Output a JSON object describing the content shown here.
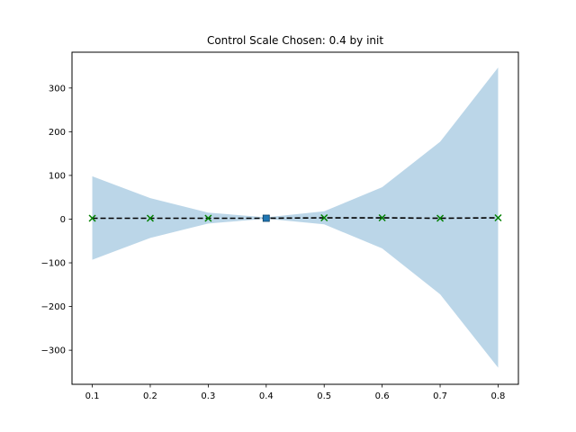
{
  "chart_data": {
    "type": "line",
    "title": "Control Scale Chosen: 0.4 by init",
    "xlabel": "",
    "ylabel": "",
    "xlim": [
      0.065,
      0.835
    ],
    "ylim": [
      -378,
      382
    ],
    "x_ticks": [
      0.1,
      0.2,
      0.3,
      0.4,
      0.5,
      0.6,
      0.7,
      0.8
    ],
    "x_tick_labels": [
      "0.1",
      "0.2",
      "0.3",
      "0.4",
      "0.5",
      "0.6",
      "0.7",
      "0.8"
    ],
    "y_ticks": [
      -300,
      -200,
      -100,
      0,
      100,
      200,
      300
    ],
    "y_tick_labels": [
      "−300",
      "−200",
      "−100",
      "0",
      "100",
      "200",
      "300"
    ],
    "grid": false,
    "band": {
      "x": [
        0.1,
        0.2,
        0.3,
        0.4,
        0.5,
        0.6,
        0.7,
        0.8
      ],
      "upper": [
        98,
        48,
        15,
        4,
        18,
        73,
        177,
        347
      ],
      "lower": [
        -93,
        -43,
        -10,
        1,
        -12,
        -67,
        -172,
        -340
      ],
      "color": "#1f77b4",
      "opacity": 0.3
    },
    "series": [
      {
        "style": "dashed-line",
        "color": "#000000",
        "x": [
          0.1,
          0.2,
          0.3,
          0.4,
          0.5,
          0.6,
          0.7,
          0.8
        ],
        "y": [
          2,
          2,
          2,
          2,
          3,
          3,
          2,
          3
        ]
      },
      {
        "style": "x-markers",
        "color": "#008000",
        "x": [
          0.1,
          0.2,
          0.3,
          0.4,
          0.5,
          0.6,
          0.7,
          0.8
        ],
        "y": [
          2,
          2,
          2,
          2,
          3,
          3,
          2,
          3
        ]
      },
      {
        "style": "square-marker",
        "color": "#1f77b4",
        "x": [
          0.4
        ],
        "y": [
          2
        ]
      }
    ]
  }
}
